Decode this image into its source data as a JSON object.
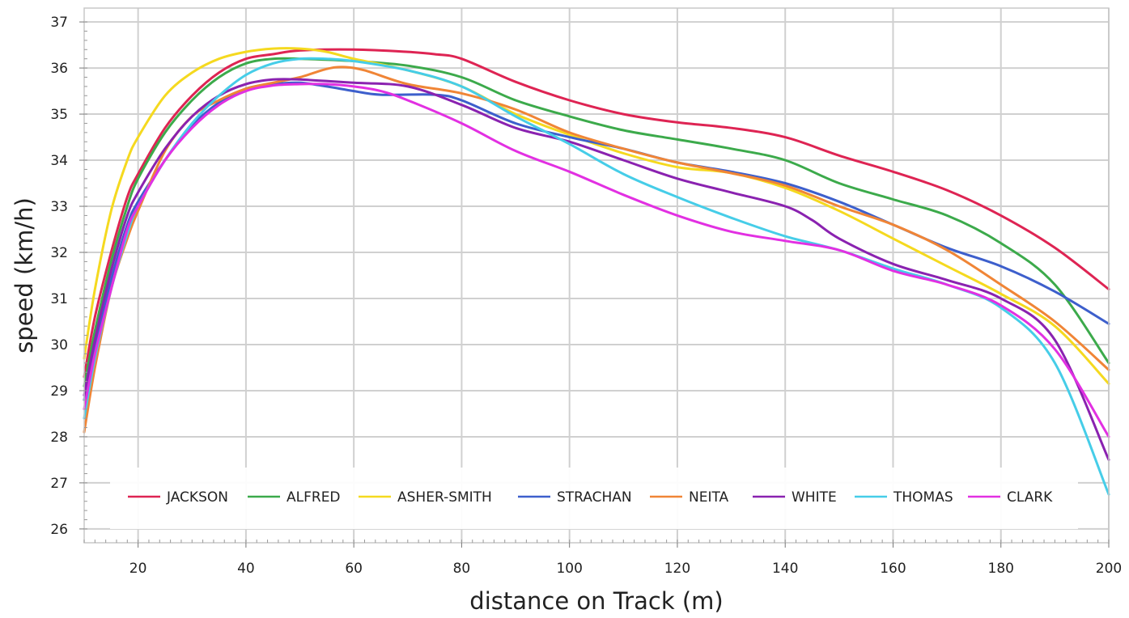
{
  "chart_data": {
    "type": "line",
    "title": "",
    "xlabel": "distance on Track (m)",
    "ylabel": "speed (km/h)",
    "xlim": [
      10,
      200
    ],
    "ylim": [
      25.7,
      37.3
    ],
    "x_ticks": [
      20,
      40,
      60,
      80,
      100,
      120,
      140,
      160,
      180,
      200
    ],
    "y_ticks": [
      26,
      27,
      28,
      29,
      30,
      31,
      32,
      33,
      34,
      35,
      36,
      37
    ],
    "grid": true,
    "legend_position": "bottom",
    "series": [
      {
        "name": "JACKSON",
        "color": "#de2453",
        "points": [
          [
            10,
            29.3
          ],
          [
            12,
            30.6
          ],
          [
            15,
            32.0
          ],
          [
            18,
            33.2
          ],
          [
            20,
            33.7
          ],
          [
            25,
            34.7
          ],
          [
            30,
            35.4
          ],
          [
            35,
            35.9
          ],
          [
            40,
            36.2
          ],
          [
            45,
            36.3
          ],
          [
            50,
            36.38
          ],
          [
            60,
            36.4
          ],
          [
            70,
            36.35
          ],
          [
            75,
            36.3
          ],
          [
            80,
            36.2
          ],
          [
            90,
            35.7
          ],
          [
            100,
            35.3
          ],
          [
            110,
            35.0
          ],
          [
            120,
            34.82
          ],
          [
            130,
            34.7
          ],
          [
            140,
            34.5
          ],
          [
            150,
            34.1
          ],
          [
            160,
            33.75
          ],
          [
            170,
            33.35
          ],
          [
            180,
            32.8
          ],
          [
            190,
            32.1
          ],
          [
            200,
            31.2
          ]
        ]
      },
      {
        "name": "ALFRED",
        "color": "#3caa4b",
        "points": [
          [
            10,
            29.1
          ],
          [
            12,
            30.3
          ],
          [
            15,
            31.8
          ],
          [
            18,
            33.0
          ],
          [
            20,
            33.6
          ],
          [
            25,
            34.6
          ],
          [
            30,
            35.3
          ],
          [
            35,
            35.8
          ],
          [
            40,
            36.1
          ],
          [
            45,
            36.2
          ],
          [
            50,
            36.2
          ],
          [
            60,
            36.15
          ],
          [
            70,
            36.05
          ],
          [
            80,
            35.8
          ],
          [
            90,
            35.3
          ],
          [
            100,
            34.95
          ],
          [
            110,
            34.65
          ],
          [
            120,
            34.45
          ],
          [
            130,
            34.25
          ],
          [
            140,
            34.0
          ],
          [
            150,
            33.5
          ],
          [
            160,
            33.15
          ],
          [
            170,
            32.8
          ],
          [
            180,
            32.2
          ],
          [
            190,
            31.3
          ],
          [
            200,
            29.6
          ]
        ]
      },
      {
        "name": "ASHER-SMITH",
        "color": "#f5d91f",
        "points": [
          [
            10,
            29.7
          ],
          [
            12,
            31.2
          ],
          [
            15,
            32.9
          ],
          [
            18,
            34.0
          ],
          [
            20,
            34.5
          ],
          [
            25,
            35.4
          ],
          [
            30,
            35.9
          ],
          [
            35,
            36.2
          ],
          [
            40,
            36.35
          ],
          [
            45,
            36.42
          ],
          [
            50,
            36.42
          ],
          [
            55,
            36.35
          ],
          [
            60,
            36.2
          ],
          [
            70,
            35.95
          ],
          [
            80,
            35.6
          ],
          [
            90,
            35.0
          ],
          [
            100,
            34.55
          ],
          [
            110,
            34.15
          ],
          [
            120,
            33.85
          ],
          [
            130,
            33.72
          ],
          [
            140,
            33.4
          ],
          [
            150,
            32.9
          ],
          [
            160,
            32.3
          ],
          [
            170,
            31.7
          ],
          [
            180,
            31.1
          ],
          [
            190,
            30.4
          ],
          [
            200,
            29.15
          ]
        ]
      },
      {
        "name": "STRACHAN",
        "color": "#3d5fcc",
        "points": [
          [
            10,
            28.8
          ],
          [
            12,
            29.9
          ],
          [
            15,
            31.4
          ],
          [
            18,
            32.6
          ],
          [
            20,
            33.1
          ],
          [
            25,
            34.0
          ],
          [
            30,
            34.75
          ],
          [
            35,
            35.25
          ],
          [
            40,
            35.55
          ],
          [
            45,
            35.65
          ],
          [
            50,
            35.68
          ],
          [
            55,
            35.6
          ],
          [
            60,
            35.5
          ],
          [
            65,
            35.42
          ],
          [
            75,
            35.42
          ],
          [
            80,
            35.3
          ],
          [
            90,
            34.8
          ],
          [
            100,
            34.5
          ],
          [
            110,
            34.25
          ],
          [
            120,
            33.95
          ],
          [
            130,
            33.75
          ],
          [
            140,
            33.5
          ],
          [
            150,
            33.1
          ],
          [
            160,
            32.6
          ],
          [
            170,
            32.1
          ],
          [
            180,
            31.7
          ],
          [
            190,
            31.15
          ],
          [
            200,
            30.45
          ]
        ]
      },
      {
        "name": "NEITA",
        "color": "#f08536",
        "points": [
          [
            10,
            28.1
          ],
          [
            12,
            29.5
          ],
          [
            15,
            31.2
          ],
          [
            18,
            32.3
          ],
          [
            20,
            32.9
          ],
          [
            25,
            34.2
          ],
          [
            30,
            34.95
          ],
          [
            35,
            35.3
          ],
          [
            40,
            35.55
          ],
          [
            45,
            35.68
          ],
          [
            50,
            35.8
          ],
          [
            55,
            35.98
          ],
          [
            58,
            36.02
          ],
          [
            62,
            35.95
          ],
          [
            70,
            35.65
          ],
          [
            80,
            35.45
          ],
          [
            90,
            35.1
          ],
          [
            100,
            34.6
          ],
          [
            110,
            34.25
          ],
          [
            120,
            33.95
          ],
          [
            130,
            33.72
          ],
          [
            140,
            33.45
          ],
          [
            150,
            33.0
          ],
          [
            160,
            32.6
          ],
          [
            170,
            32.05
          ],
          [
            180,
            31.3
          ],
          [
            190,
            30.5
          ],
          [
            200,
            29.45
          ]
        ]
      },
      {
        "name": "WHITE",
        "color": "#8a22b0",
        "points": [
          [
            10,
            28.9
          ],
          [
            12,
            30.1
          ],
          [
            15,
            31.6
          ],
          [
            18,
            32.8
          ],
          [
            20,
            33.3
          ],
          [
            25,
            34.25
          ],
          [
            30,
            34.95
          ],
          [
            35,
            35.4
          ],
          [
            40,
            35.65
          ],
          [
            45,
            35.75
          ],
          [
            50,
            35.75
          ],
          [
            60,
            35.68
          ],
          [
            70,
            35.6
          ],
          [
            80,
            35.2
          ],
          [
            90,
            34.7
          ],
          [
            100,
            34.4
          ],
          [
            110,
            34.0
          ],
          [
            120,
            33.6
          ],
          [
            130,
            33.3
          ],
          [
            140,
            33.0
          ],
          [
            145,
            32.7
          ],
          [
            150,
            32.3
          ],
          [
            160,
            31.75
          ],
          [
            170,
            31.4
          ],
          [
            180,
            31.0
          ],
          [
            190,
            30.1
          ],
          [
            200,
            27.5
          ]
        ]
      },
      {
        "name": "THOMAS",
        "color": "#46cde8",
        "points": [
          [
            10,
            28.4
          ],
          [
            12,
            29.7
          ],
          [
            15,
            31.2
          ],
          [
            18,
            32.4
          ],
          [
            20,
            33.0
          ],
          [
            25,
            34.0
          ],
          [
            30,
            34.8
          ],
          [
            35,
            35.4
          ],
          [
            40,
            35.85
          ],
          [
            45,
            36.1
          ],
          [
            50,
            36.2
          ],
          [
            55,
            36.2
          ],
          [
            60,
            36.15
          ],
          [
            70,
            35.95
          ],
          [
            80,
            35.6
          ],
          [
            90,
            34.95
          ],
          [
            100,
            34.35
          ],
          [
            110,
            33.7
          ],
          [
            120,
            33.2
          ],
          [
            130,
            32.75
          ],
          [
            140,
            32.35
          ],
          [
            150,
            32.05
          ],
          [
            160,
            31.65
          ],
          [
            170,
            31.3
          ],
          [
            180,
            30.8
          ],
          [
            190,
            29.6
          ],
          [
            200,
            26.75
          ]
        ]
      },
      {
        "name": "CLARK",
        "color": "#e230e2",
        "points": [
          [
            10,
            28.6
          ],
          [
            12,
            29.8
          ],
          [
            15,
            31.2
          ],
          [
            18,
            32.5
          ],
          [
            20,
            33.0
          ],
          [
            25,
            34.0
          ],
          [
            30,
            34.7
          ],
          [
            35,
            35.2
          ],
          [
            40,
            35.5
          ],
          [
            45,
            35.62
          ],
          [
            50,
            35.65
          ],
          [
            55,
            35.65
          ],
          [
            60,
            35.6
          ],
          [
            65,
            35.5
          ],
          [
            70,
            35.3
          ],
          [
            80,
            34.8
          ],
          [
            90,
            34.2
          ],
          [
            100,
            33.75
          ],
          [
            110,
            33.25
          ],
          [
            120,
            32.8
          ],
          [
            130,
            32.45
          ],
          [
            140,
            32.25
          ],
          [
            150,
            32.05
          ],
          [
            160,
            31.6
          ],
          [
            170,
            31.3
          ],
          [
            180,
            30.85
          ],
          [
            190,
            29.9
          ],
          [
            200,
            28.0
          ]
        ]
      }
    ]
  }
}
